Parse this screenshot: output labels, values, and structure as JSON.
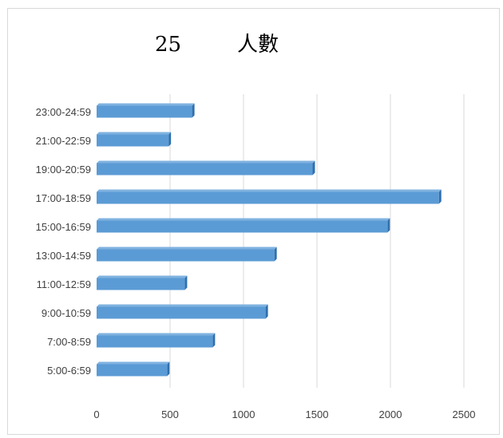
{
  "chart_data": {
    "type": "bar",
    "orientation": "horizontal",
    "title_prefix": "25",
    "title": "人數",
    "categories": [
      "5:00-6:59",
      "7:00-8:59",
      "9:00-10:59",
      "11:00-12:59",
      "13:00-14:59",
      "15:00-16:59",
      "17:00-18:59",
      "19:00-20:59",
      "21:00-22:59",
      "23:00-24:59"
    ],
    "values": [
      480,
      790,
      1150,
      600,
      1210,
      1980,
      2330,
      1470,
      490,
      650
    ],
    "xlim": [
      0,
      2500
    ],
    "xticks": [
      "0",
      "500",
      "1000",
      "1500",
      "2000",
      "2500"
    ],
    "grid": true,
    "legend": "none",
    "bar_color": "#5b9bd5",
    "bar_edge_color": "#2f6fad"
  }
}
